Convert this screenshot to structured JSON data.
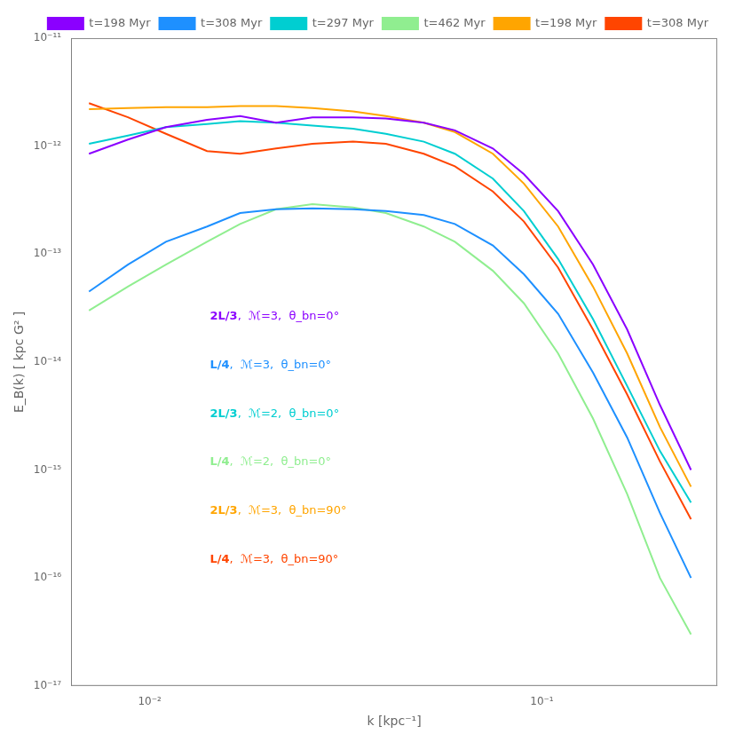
{
  "chart_data": {
    "type": "line",
    "xlabel": "k [kpc⁻¹]",
    "ylabel": "E_B(k) [ kpc G² ]",
    "log": true,
    "grid": false,
    "legend": "upper right",
    "xlim": [
      0.0063,
      0.28
    ],
    "ylim": [
      1e-17,
      1e-11
    ],
    "xticks": [
      {
        "value": 0.01,
        "label": "10⁻²"
      },
      {
        "value": 0.1,
        "label": "10⁻¹"
      }
    ],
    "yticks": [
      {
        "value": 1e-17,
        "label": "10⁻¹⁷"
      },
      {
        "value": 1e-16,
        "label": "10⁻¹⁶"
      },
      {
        "value": 1e-15,
        "label": "10⁻¹⁵"
      },
      {
        "value": 1e-14,
        "label": "10⁻¹⁴"
      },
      {
        "value": 1e-13,
        "label": "10⁻¹³"
      },
      {
        "value": 1e-12,
        "label": "10⁻¹²"
      },
      {
        "value": 1e-11,
        "label": "10⁻¹¹"
      }
    ],
    "x": [
      0.007,
      0.0088,
      0.011,
      0.014,
      0.017,
      0.021,
      0.026,
      0.033,
      0.04,
      0.05,
      0.06,
      0.075,
      0.09,
      0.11,
      0.135,
      0.165,
      0.2,
      0.24
    ],
    "series": [
      {
        "name": "t=198 Myr",
        "color": "#8B00FF",
        "values": [
          8.5e-13,
          1.15e-12,
          1.5e-12,
          1.75e-12,
          1.9e-12,
          1.65e-12,
          1.85e-12,
          1.85e-12,
          1.8e-12,
          1.65e-12,
          1.4e-12,
          9.5e-13,
          5.5e-13,
          2.5e-13,
          8e-14,
          2e-14,
          4e-15,
          1e-15
        ]
      },
      {
        "name": "t=308 Myr",
        "color": "#1E90FF",
        "values": [
          4.5e-14,
          8e-14,
          1.3e-13,
          1.8e-13,
          2.4e-13,
          2.6e-13,
          2.65e-13,
          2.6e-13,
          2.5e-13,
          2.3e-13,
          1.9e-13,
          1.2e-13,
          6.5e-14,
          2.8e-14,
          8e-15,
          2e-15,
          4e-16,
          1e-16
        ]
      },
      {
        "name": "t=297 Myr",
        "color": "#00CED1",
        "values": [
          1.05e-12,
          1.25e-12,
          1.5e-12,
          1.6e-12,
          1.7e-12,
          1.65e-12,
          1.55e-12,
          1.45e-12,
          1.3e-12,
          1.1e-12,
          8.5e-13,
          5e-13,
          2.5e-13,
          9e-14,
          2.5e-14,
          6e-15,
          1.5e-15,
          5e-16
        ]
      },
      {
        "name": "t=462 Myr",
        "color": "#90EE90",
        "values": [
          3e-14,
          5e-14,
          8e-14,
          1.3e-13,
          1.9e-13,
          2.6e-13,
          2.9e-13,
          2.7e-13,
          2.4e-13,
          1.8e-13,
          1.3e-13,
          7e-14,
          3.5e-14,
          1.2e-14,
          3e-15,
          6e-16,
          1e-16,
          3e-17
        ]
      },
      {
        "name": "t=198 Myr",
        "color": "#FFA500",
        "values": [
          2.2e-12,
          2.25e-12,
          2.3e-12,
          2.3e-12,
          2.35e-12,
          2.35e-12,
          2.25e-12,
          2.1e-12,
          1.9e-12,
          1.65e-12,
          1.35e-12,
          8.5e-13,
          4.5e-13,
          1.8e-13,
          5e-14,
          1.2e-14,
          2.5e-15,
          7e-16
        ]
      },
      {
        "name": "t=308 Myr",
        "color": "#FF4500",
        "values": [
          2.5e-12,
          1.85e-12,
          1.3e-12,
          9e-13,
          8.5e-13,
          9.5e-13,
          1.05e-12,
          1.1e-12,
          1.05e-12,
          8.5e-13,
          6.5e-13,
          3.8e-13,
          2e-13,
          7.5e-14,
          2e-14,
          5e-15,
          1.2e-15,
          3.5e-16
        ]
      }
    ],
    "annotations": [
      {
        "bold": "2L/3",
        "text": ",  ℳ=3,  θ_bn=0°",
        "color": "#8B00FF"
      },
      {
        "bold": "L/4",
        "text": ",  ℳ=3,  θ_bn=0°",
        "color": "#1E90FF"
      },
      {
        "bold": "2L/3",
        "text": ",  ℳ=2,  θ_bn=0°",
        "color": "#00CED1"
      },
      {
        "bold": "L/4",
        "text": ",  ℳ=2,  θ_bn=0°",
        "color": "#90EE90"
      },
      {
        "bold": "2L/3",
        "text": ",  ℳ=3,  θ_bn=90°",
        "color": "#FFA500"
      },
      {
        "bold": "L/4",
        "text": ",  ℳ=3,  θ_bn=90°",
        "color": "#FF4500"
      }
    ]
  }
}
